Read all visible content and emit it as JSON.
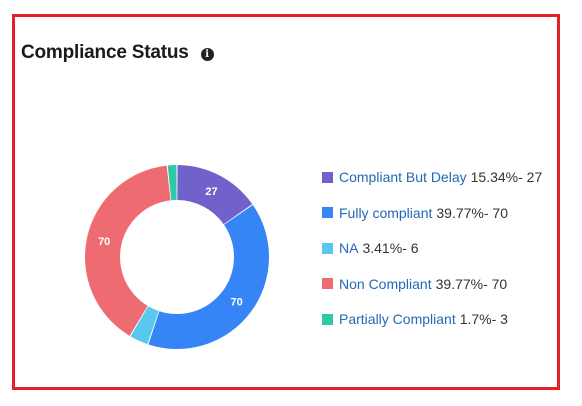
{
  "header": {
    "title": "Compliance Status",
    "info_icon": "info-icon",
    "info_glyph": "i"
  },
  "colors": {
    "frame_border": "#e3202a"
  },
  "chart_data": {
    "type": "pie",
    "title": "Compliance Status",
    "donut": true,
    "legend_position": "right",
    "slices": [
      {
        "name": "Compliant But Delay",
        "percent": "15.34%",
        "value": 27,
        "label": "27",
        "color": "#7161cb",
        "value_text": "15.34%- 27"
      },
      {
        "name": "Fully compliant",
        "percent": "39.77%",
        "value": 70,
        "label": "70",
        "color": "#3585f6",
        "value_text": "39.77%- 70"
      },
      {
        "name": "NA",
        "percent": "3.41%",
        "value": 6,
        "label": "",
        "color": "#58c8ed",
        "value_text": "3.41%- 6"
      },
      {
        "name": "Non Compliant",
        "percent": "39.77%",
        "value": 70,
        "label": "70",
        "color": "#ef6b72",
        "value_text": "39.77%- 70"
      },
      {
        "name": "Partially Compliant",
        "percent": "1.7%",
        "value": 3,
        "label": "",
        "color": "#2ec9a8",
        "value_text": "1.7%- 3"
      }
    ]
  }
}
